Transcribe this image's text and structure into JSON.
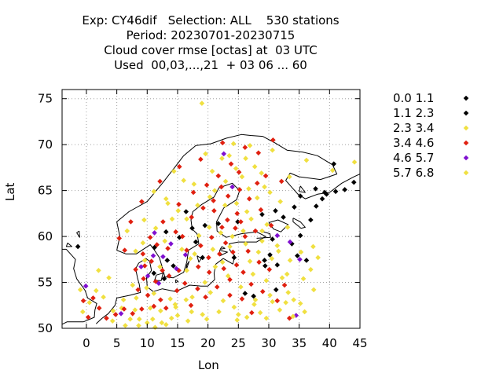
{
  "chart_data": {
    "type": "scatter",
    "title_lines": [
      "Exp: CY46dif   Selection: ALL    530 stations",
      "Period: 20230701-20230715",
      "Cloud cover rmse [octas] at  03 UTC",
      "Used  00,03,...,21  + 03 06 ... 60"
    ],
    "xlabel": "Lon",
    "ylabel": "Lat",
    "xlim": [
      -4,
      45
    ],
    "ylim": [
      50,
      76
    ],
    "xticks": [
      0,
      5,
      10,
      15,
      20,
      25,
      30,
      35,
      40,
      45
    ],
    "yticks": [
      50,
      55,
      60,
      65,
      70,
      75
    ],
    "grid": true,
    "legend_position": "right",
    "series": [
      {
        "name": "0.0 1.1",
        "color": "#000000",
        "points": [
          [
            40.7,
            67.9
          ],
          [
            42.5,
            65.1
          ],
          [
            41.0,
            64.9
          ],
          [
            39.5,
            64.6
          ],
          [
            35.2,
            64.4
          ],
          [
            37.8,
            63.3
          ],
          [
            36.9,
            61.8
          ],
          [
            35.2,
            60.1
          ],
          [
            33.8,
            59.2
          ],
          [
            30.6,
            59.7
          ],
          [
            36.2,
            57.4
          ],
          [
            34.7,
            57.9
          ],
          [
            27.5,
            53.5
          ],
          [
            26.1,
            53.8
          ],
          [
            31.2,
            54.2
          ],
          [
            29.4,
            56.8
          ],
          [
            32.4,
            62.1
          ],
          [
            31.1,
            62.8
          ],
          [
            13.1,
            60.5
          ],
          [
            16.4,
            62.7
          ],
          [
            28.9,
            62.4
          ],
          [
            29.3,
            57.4
          ],
          [
            15.3,
            59.9
          ],
          [
            37.7,
            65.2
          ],
          [
            39.2,
            64.8
          ],
          [
            -1.4,
            58.9
          ],
          [
            44.0,
            65.9
          ],
          [
            12.8,
            55.4
          ],
          [
            30.2,
            58.0
          ]
        ]
      },
      {
        "name": "1.1 2.3",
        "color": "#000000",
        "points": [
          [
            18.0,
            59.4
          ],
          [
            19.5,
            61.2
          ],
          [
            11.2,
            58.8
          ],
          [
            24.9,
            61.6
          ],
          [
            13.3,
            57.4
          ],
          [
            21.7,
            61.4
          ],
          [
            24.3,
            57.7
          ],
          [
            38.8,
            64.1
          ],
          [
            17.4,
            60.9
          ],
          [
            34.2,
            63.2
          ],
          [
            19.1,
            57.7
          ],
          [
            11.1,
            56.0
          ],
          [
            31.4,
            56.9
          ],
          [
            14.3,
            56.8
          ]
        ]
      },
      {
        "name": "2.3 3.4",
        "color": "#f0e040",
        "points": [
          [
            19.0,
            74.5
          ],
          [
            23.5,
            68.8
          ],
          [
            27.7,
            67.6
          ],
          [
            26.2,
            68.5
          ],
          [
            25.6,
            66.5
          ],
          [
            29.3,
            65.4
          ],
          [
            27.1,
            61.9
          ],
          [
            28.9,
            59.5
          ],
          [
            30.5,
            57.6
          ],
          [
            32.2,
            55.5
          ],
          [
            33.2,
            53.9
          ],
          [
            34.1,
            53.1
          ],
          [
            30.6,
            52.9
          ],
          [
            28.6,
            51.7
          ],
          [
            24.3,
            52.3
          ],
          [
            21.8,
            51.8
          ],
          [
            19.1,
            51.5
          ],
          [
            16.7,
            50.8
          ],
          [
            14.0,
            51.1
          ],
          [
            12.2,
            51.9
          ],
          [
            10.5,
            52.2
          ],
          [
            8.0,
            52.0
          ],
          [
            5.8,
            52.2
          ],
          [
            4.4,
            51.9
          ],
          [
            6.1,
            53.1
          ],
          [
            8.2,
            53.3
          ],
          [
            11.1,
            53.8
          ],
          [
            13.8,
            53.2
          ],
          [
            9.9,
            54.4
          ],
          [
            7.6,
            54.7
          ],
          [
            12.1,
            56.7
          ],
          [
            9.6,
            57.4
          ],
          [
            16.5,
            56.3
          ],
          [
            17.8,
            58.1
          ],
          [
            20.8,
            58.6
          ],
          [
            23.6,
            58.9
          ],
          [
            22.1,
            60.4
          ],
          [
            20.2,
            61.0
          ],
          [
            18.5,
            60.1
          ],
          [
            16.5,
            61.9
          ],
          [
            15.1,
            62.8
          ],
          [
            13.4,
            63.6
          ],
          [
            18.3,
            63.4
          ],
          [
            20.3,
            64.3
          ],
          [
            21.1,
            65.0
          ],
          [
            22.9,
            66.0
          ],
          [
            24.6,
            67.4
          ],
          [
            16.0,
            66.1
          ],
          [
            14.4,
            67.1
          ],
          [
            13.1,
            64.1
          ],
          [
            11.1,
            64.9
          ],
          [
            9.3,
            59.3
          ],
          [
            8.1,
            58.4
          ],
          [
            6.7,
            60.6
          ],
          [
            1.6,
            54.1
          ],
          [
            2.0,
            56.3
          ],
          [
            3.7,
            55.5
          ],
          [
            -0.6,
            51.8
          ],
          [
            0.5,
            52.8
          ],
          [
            -1.0,
            54.2
          ],
          [
            27.8,
            53.1
          ],
          [
            25.4,
            54.5
          ],
          [
            23.3,
            55.7
          ],
          [
            21.2,
            56.7
          ],
          [
            26.9,
            57.3
          ],
          [
            35.7,
            55.4
          ],
          [
            36.9,
            56.4
          ],
          [
            38.1,
            57.7
          ],
          [
            37.3,
            58.9
          ],
          [
            33.1,
            61.0
          ],
          [
            31.9,
            63.8
          ],
          [
            30.2,
            64.8
          ],
          [
            33.4,
            66.5
          ],
          [
            36.2,
            68.3
          ],
          [
            40.5,
            67.2
          ],
          [
            44.1,
            68.1
          ],
          [
            12.4,
            50.6
          ],
          [
            15.0,
            51.4
          ],
          [
            14.6,
            52.6
          ],
          [
            17.4,
            53.4
          ],
          [
            7.2,
            51.0
          ],
          [
            10.9,
            51.0
          ],
          [
            8.6,
            50.3
          ],
          [
            11.3,
            50.1
          ],
          [
            27.4,
            55.9
          ],
          [
            29.6,
            55.2
          ],
          [
            31.8,
            52.0
          ],
          [
            35.2,
            52.7
          ],
          [
            24.8,
            50.9
          ],
          [
            20.4,
            53.9
          ],
          [
            19.5,
            55.0
          ],
          [
            17.1,
            57.6
          ],
          [
            15.7,
            58.6
          ],
          [
            24.0,
            60.0
          ],
          [
            25.8,
            60.6
          ],
          [
            26.4,
            62.7
          ],
          [
            24.7,
            63.6
          ],
          [
            28.1,
            64.2
          ],
          [
            26.7,
            65.2
          ],
          [
            28.8,
            66.9
          ],
          [
            30.6,
            69.4
          ],
          [
            26.9,
            69.9
          ],
          [
            24.2,
            70.1
          ],
          [
            22.3,
            68.5
          ],
          [
            19.6,
            69.0
          ],
          [
            20.7,
            67.1
          ],
          [
            17.7,
            65.7
          ],
          [
            14.1,
            61.9
          ],
          [
            11.4,
            60.9
          ],
          [
            9.5,
            61.8
          ],
          [
            12.9,
            59.5
          ],
          [
            22.8,
            63.4
          ],
          [
            29.7,
            61.3
          ],
          [
            31.4,
            59.0
          ],
          [
            33.5,
            57.4
          ],
          [
            26.2,
            59.2
          ],
          [
            28.3,
            58.3
          ],
          [
            22.4,
            57.2
          ]
        ]
      },
      {
        "name": "3.4 4.6",
        "color": "#e02010",
        "points": [
          [
            26.1,
            69.7
          ],
          [
            22.4,
            70.2
          ],
          [
            23.8,
            67.9
          ],
          [
            25.1,
            67.0
          ],
          [
            21.7,
            66.6
          ],
          [
            19.8,
            65.6
          ],
          [
            17.6,
            64.8
          ],
          [
            15.2,
            63.5
          ],
          [
            14.7,
            60.5
          ],
          [
            12.6,
            61.6
          ],
          [
            11.6,
            59.1
          ],
          [
            10.5,
            59.9
          ],
          [
            9.3,
            58.1
          ],
          [
            10.7,
            57.3
          ],
          [
            12.5,
            56.3
          ],
          [
            13.6,
            55.7
          ],
          [
            11.4,
            55.1
          ],
          [
            9.4,
            55.4
          ],
          [
            8.5,
            54.2
          ],
          [
            10.1,
            53.6
          ],
          [
            12.2,
            53.1
          ],
          [
            14.9,
            54.1
          ],
          [
            16.2,
            54.9
          ],
          [
            18.3,
            54.3
          ],
          [
            20.2,
            56.1
          ],
          [
            22.6,
            56.5
          ],
          [
            24.7,
            56.9
          ],
          [
            26.6,
            58.4
          ],
          [
            27.8,
            60.6
          ],
          [
            25.4,
            61.6
          ],
          [
            23.2,
            61.8
          ],
          [
            21.0,
            62.8
          ],
          [
            19.2,
            63.1
          ],
          [
            17.3,
            62.1
          ],
          [
            15.8,
            60.0
          ],
          [
            18.8,
            59.0
          ],
          [
            20.6,
            59.9
          ],
          [
            22.9,
            59.3
          ],
          [
            24.1,
            58.3
          ],
          [
            25.8,
            56.1
          ],
          [
            27.1,
            54.8
          ],
          [
            29.0,
            54.0
          ],
          [
            31.4,
            53.0
          ],
          [
            33.4,
            51.1
          ],
          [
            23.6,
            53.6
          ],
          [
            21.5,
            54.5
          ],
          [
            6.2,
            52.1
          ],
          [
            4.8,
            51.5
          ],
          [
            3.3,
            51.1
          ],
          [
            2.1,
            52.2
          ],
          [
            1.1,
            53.3
          ],
          [
            0.3,
            51.2
          ],
          [
            -0.5,
            53.0
          ],
          [
            7.6,
            51.6
          ],
          [
            9.1,
            52.1
          ],
          [
            8.1,
            56.4
          ],
          [
            9.6,
            56.8
          ],
          [
            6.3,
            58.5
          ],
          [
            5.4,
            59.8
          ],
          [
            7.3,
            61.6
          ],
          [
            9.1,
            63.8
          ],
          [
            12.1,
            66.0
          ],
          [
            15.3,
            67.6
          ],
          [
            18.8,
            68.4
          ],
          [
            25.2,
            65.1
          ],
          [
            28.1,
            65.8
          ],
          [
            29.5,
            66.6
          ],
          [
            30.7,
            70.5
          ],
          [
            28.3,
            69.1
          ],
          [
            26.8,
            64.1
          ],
          [
            23.3,
            64.4
          ],
          [
            24.8,
            62.5
          ],
          [
            26.1,
            60.0
          ],
          [
            28.4,
            57.2
          ],
          [
            30.1,
            56.4
          ],
          [
            20.1,
            57.7
          ],
          [
            18.4,
            56.7
          ],
          [
            15.2,
            56.3
          ],
          [
            13.4,
            58.7
          ],
          [
            16.5,
            58.5
          ],
          [
            21.9,
            58.1
          ],
          [
            23.6,
            55.3
          ],
          [
            25.6,
            53.2
          ],
          [
            19.6,
            53.4
          ],
          [
            17.2,
            52.5
          ],
          [
            13.1,
            52.2
          ],
          [
            11.1,
            52.4
          ],
          [
            27.2,
            51.7
          ],
          [
            32.6,
            54.7
          ],
          [
            22.3,
            61.0
          ],
          [
            24.5,
            60.9
          ],
          [
            20.9,
            63.9
          ],
          [
            22.2,
            65.4
          ],
          [
            30.4,
            61.2
          ],
          [
            28.7,
            62.9
          ],
          [
            32.1,
            66.0
          ]
        ]
      },
      {
        "name": "4.6 5.7",
        "color": "#8010d0",
        "points": [
          [
            11.0,
            57.9
          ],
          [
            10.1,
            55.7
          ],
          [
            14.8,
            56.5
          ],
          [
            24.0,
            65.4
          ],
          [
            16.3,
            58.0
          ],
          [
            11.9,
            54.9
          ],
          [
            13.9,
            59.2
          ],
          [
            9.0,
            56.7
          ],
          [
            5.7,
            51.6
          ],
          [
            31.4,
            60.1
          ],
          [
            33.5,
            59.4
          ],
          [
            -0.1,
            54.6
          ],
          [
            35.1,
            57.5
          ],
          [
            34.5,
            51.4
          ],
          [
            22.6,
            69.0
          ],
          [
            12.6,
            57.8
          ],
          [
            11.2,
            60.4
          ]
        ]
      },
      {
        "name": "5.7 6.8",
        "color": "#f0e040",
        "points": [
          [
            27.6,
            52.6
          ],
          [
            32.8,
            52.8
          ],
          [
            25.0,
            51.5
          ],
          [
            29.6,
            51.1
          ],
          [
            35.9,
            51.8
          ],
          [
            34.0,
            51.3
          ],
          [
            19.8,
            51.0
          ],
          [
            17.3,
            51.8
          ],
          [
            13.1,
            50.4
          ],
          [
            8.7,
            51.0
          ],
          [
            10.0,
            50.6
          ],
          [
            6.4,
            50.3
          ],
          [
            4.3,
            50.8
          ],
          [
            2.8,
            53.4
          ],
          [
            14.7,
            52.3
          ],
          [
            16.4,
            53.1
          ],
          [
            30.2,
            53.6
          ],
          [
            22.5,
            53.0
          ],
          [
            26.4,
            51.2
          ],
          [
            37.4,
            54.2
          ],
          [
            33.0,
            55.9
          ],
          [
            35.3,
            58.3
          ],
          [
            31.6,
            58.4
          ],
          [
            28.9,
            60.6
          ]
        ]
      }
    ]
  }
}
